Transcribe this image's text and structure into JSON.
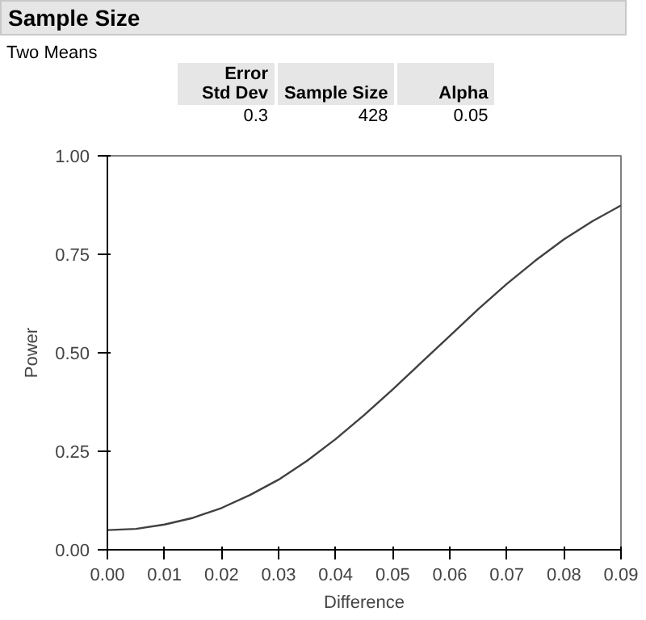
{
  "chart_data": {
    "type": "line",
    "title": "Sample Size",
    "subtitle": "Two Means",
    "annotations": [
      "Error\nStd Dev",
      "Sample Size",
      "Alpha",
      "0.3",
      "428",
      "0.05"
    ],
    "xlabel": "Difference",
    "ylabel": "Power",
    "x": [
      0,
      0.005,
      0.01,
      0.015,
      0.02,
      0.025,
      0.03,
      0.035,
      0.04,
      0.045,
      0.05,
      0.055,
      0.06,
      0.065,
      0.07,
      0.075,
      0.08,
      0.085,
      0.09
    ],
    "series": [
      {
        "color": "#404040",
        "values": [
          0.05,
          0.053,
          0.064,
          0.081,
          0.106,
          0.139,
          0.178,
          0.226,
          0.281,
          0.342,
          0.407,
          0.475,
          0.543,
          0.611,
          0.675,
          0.734,
          0.788,
          0.834,
          0.874
        ]
      }
    ],
    "xlim": [
      0,
      0.09
    ],
    "ylim": [
      0,
      1
    ],
    "xticks": [
      {
        "value": 0,
        "label": "0.00"
      },
      {
        "value": 0.01,
        "label": "0.01"
      },
      {
        "value": 0.02,
        "label": "0.02"
      },
      {
        "value": 0.03,
        "label": "0.03"
      },
      {
        "value": 0.04,
        "label": "0.04"
      },
      {
        "value": 0.05,
        "label": "0.05"
      },
      {
        "value": 0.06,
        "label": "0.06"
      },
      {
        "value": 0.07,
        "label": "0.07"
      },
      {
        "value": 0.08,
        "label": "0.08"
      },
      {
        "value": 0.09,
        "label": "0.09"
      }
    ],
    "yticks": [
      {
        "value": 0,
        "label": "0.00"
      },
      {
        "value": 0.25,
        "label": "0.25"
      },
      {
        "value": 0.5,
        "label": "0.50"
      },
      {
        "value": 0.75,
        "label": "0.75"
      },
      {
        "value": 1,
        "label": "1.00"
      }
    ],
    "grid": false,
    "marker": "none",
    "line_style": "solid"
  }
}
